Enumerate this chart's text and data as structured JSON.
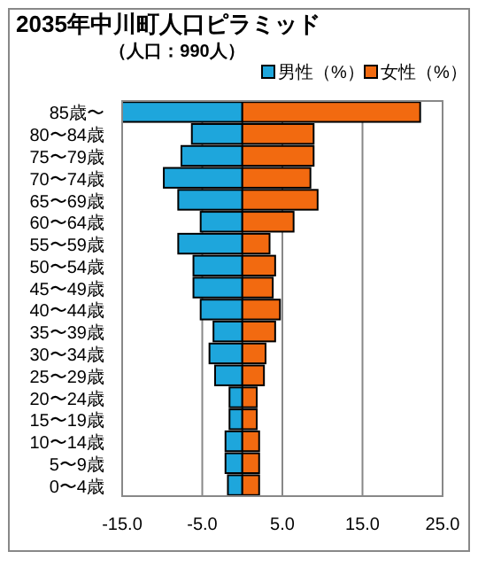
{
  "chart_data": {
    "type": "bar",
    "orientation": "horizontal",
    "title": "2035年中川町人口ピラミッド",
    "subtitle": "（人口：990人）",
    "categories": [
      "85歳〜",
      "80〜84歳",
      "75〜79歳",
      "70〜74歳",
      "65〜69歳",
      "60〜64歳",
      "55〜59歳",
      "50〜54歳",
      "45〜49歳",
      "40〜44歳",
      "35〜39歳",
      "30〜34歳",
      "25〜29歳",
      "20〜24歳",
      "15〜19歳",
      "10〜14歳",
      "5〜9歳",
      "0〜4歳"
    ],
    "series": [
      {
        "name": "男性（%）",
        "color": "#1ea6dc",
        "values": [
          -15.0,
          -6.3,
          -7.6,
          -9.8,
          -8.0,
          -5.2,
          -8.0,
          -6.1,
          -6.1,
          -5.2,
          -3.6,
          -4.1,
          -3.4,
          -1.6,
          -1.6,
          -2.1,
          -2.1,
          -1.8
        ]
      },
      {
        "name": "女性（%）",
        "color": "#f26a10",
        "values": [
          22.2,
          8.9,
          8.9,
          8.5,
          9.4,
          6.4,
          3.4,
          4.1,
          3.8,
          4.7,
          4.1,
          2.9,
          2.7,
          1.8,
          1.8,
          2.1,
          2.1,
          2.1
        ]
      }
    ],
    "xlim": [
      -15,
      25
    ],
    "xticks": [
      {
        "value": -15,
        "label": "-15.0"
      },
      {
        "value": -5,
        "label": "-5.0"
      },
      {
        "value": 5,
        "label": "5.0"
      },
      {
        "value": 15,
        "label": "15.0"
      },
      {
        "value": 25,
        "label": "25.0"
      }
    ],
    "grid": "x",
    "stacked": true,
    "legend": "top right"
  }
}
